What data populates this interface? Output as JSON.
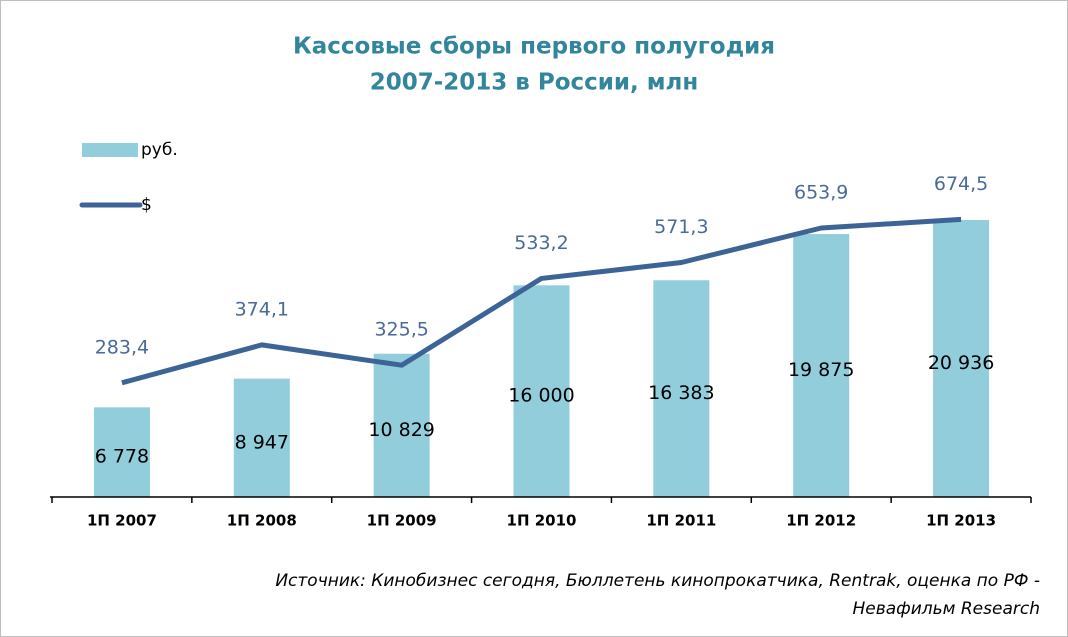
{
  "chart_data": {
    "type": "bar-line",
    "title": [
      "Кассовые сборы первого полугодия",
      "2007-2013  в России, млн"
    ],
    "categories": [
      "1П 2007",
      "1П 2008",
      "1П 2009",
      "1П 2010",
      "1П 2011",
      "1П 2012",
      "1П 2013"
    ],
    "series": [
      {
        "name": "руб.",
        "type": "bar",
        "color": "#92cddc",
        "values": [
          6778,
          8947,
          10829,
          16000,
          16383,
          19875,
          20936
        ],
        "value_labels": [
          "6 778",
          "8 947",
          "10 829",
          "16 000",
          "16 383",
          "19 875",
          "20 936"
        ]
      },
      {
        "name": "$",
        "type": "line",
        "axis": "y2",
        "color": "#3c6496",
        "values": [
          283.4,
          374.1,
          325.5,
          533.2,
          571.3,
          653.9,
          674.5
        ],
        "value_labels": [
          "283,4",
          "374,1",
          "325,5",
          "533,2",
          "571,3",
          "653,9",
          "674,5"
        ]
      }
    ],
    "ylim": [
      0,
      24000
    ],
    "y2lim": [
      10,
      770
    ],
    "source": [
      "Источник: Кинобизнес сегодня, Бюллетень кинопрокатчика, Rentrak, оценка по РФ -",
      "Невафильм Research"
    ]
  }
}
